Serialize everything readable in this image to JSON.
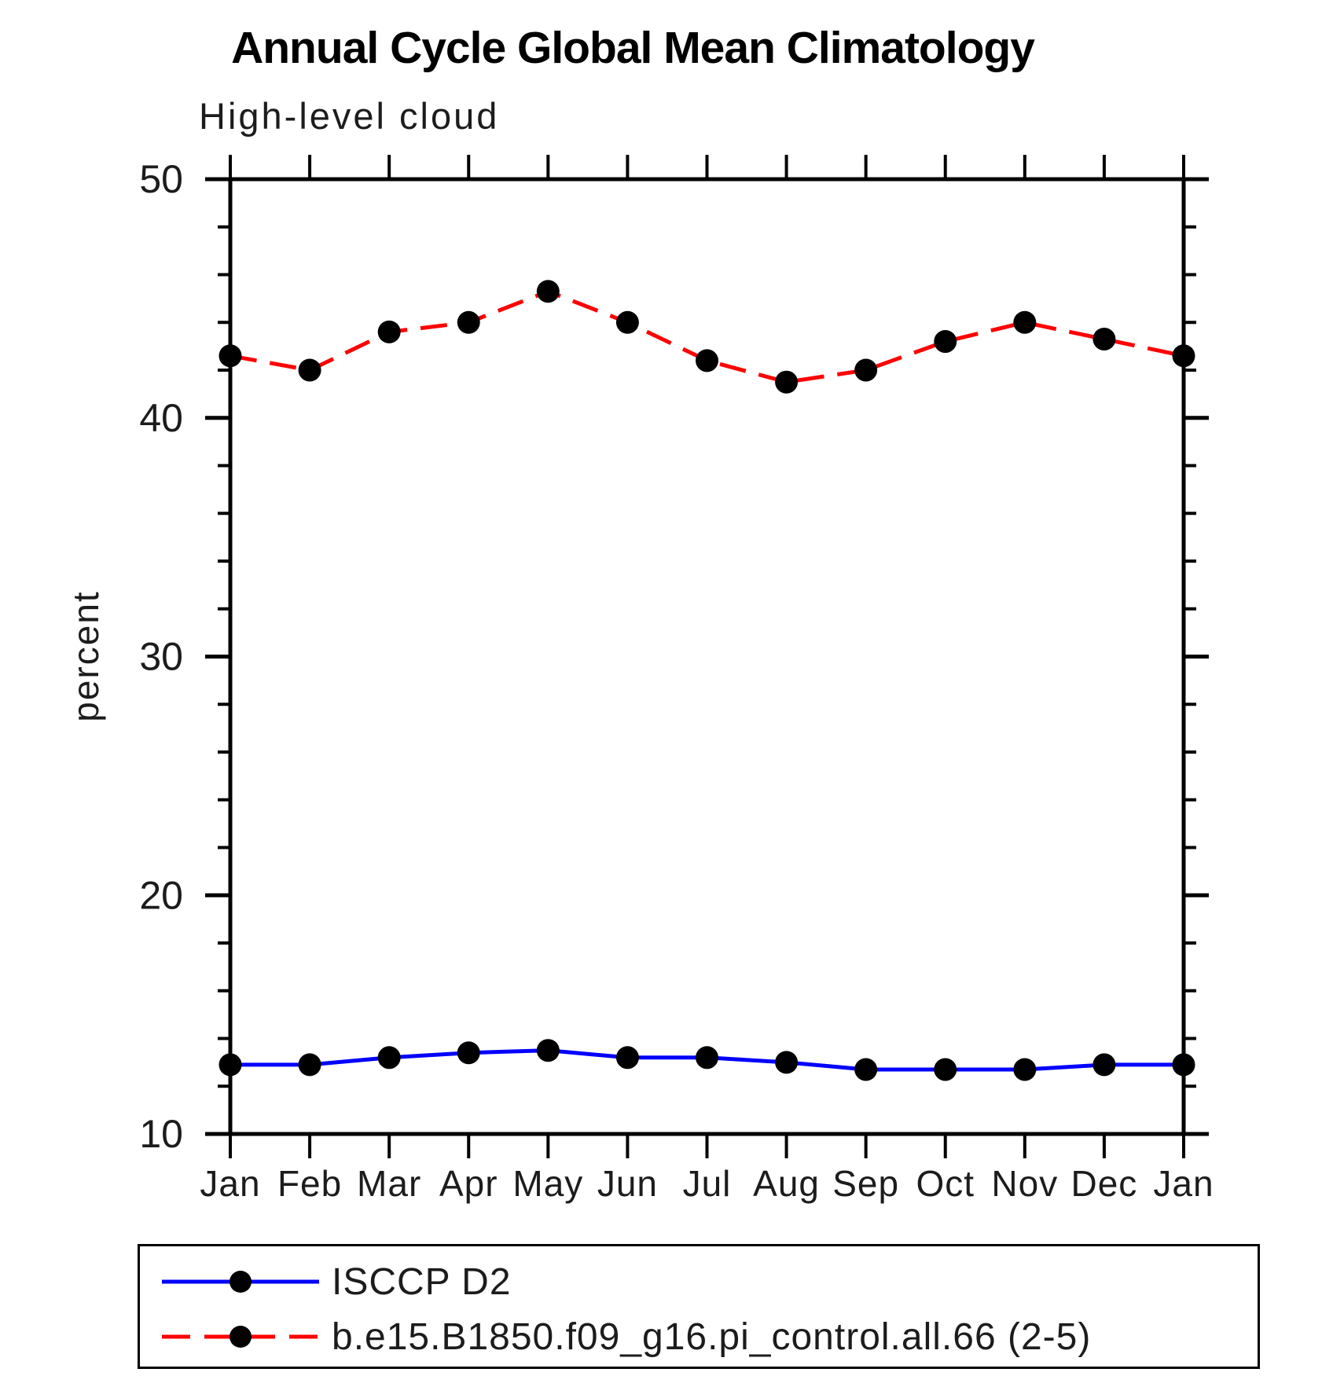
{
  "title": "Annual Cycle Global Mean Climatology",
  "subtitle": "High-level cloud",
  "ylabel": "percent",
  "legend": {
    "position": "bottom",
    "items": [
      {
        "label": "ISCCP D2",
        "color": "#0000ff",
        "style": "solid",
        "marker": "circle"
      },
      {
        "label": "b.e15.B1850.f09_g16.pi_control.all.66 (2-5)",
        "color": "#ff0000",
        "style": "dashed",
        "marker": "circle"
      }
    ]
  },
  "chart_data": {
    "type": "line",
    "title": "Annual Cycle Global Mean Climatology",
    "subtitle": "High-level cloud",
    "xlabel": "",
    "ylabel": "percent",
    "x_categories": [
      "Jan",
      "Feb",
      "Mar",
      "Apr",
      "May",
      "Jun",
      "Jul",
      "Aug",
      "Sep",
      "Oct",
      "Nov",
      "Dec",
      "Jan"
    ],
    "series": [
      {
        "name": "ISCCP D2",
        "color": "#0000ff",
        "line_style": "solid",
        "marker": "circle",
        "marker_color": "#000000",
        "values": [
          12.9,
          12.9,
          13.2,
          13.4,
          13.5,
          13.2,
          13.2,
          13.0,
          12.7,
          12.7,
          12.7,
          12.9,
          12.9
        ]
      },
      {
        "name": "b.e15.B1850.f09_g16.pi_control.all.66 (2-5)",
        "color": "#ff0000",
        "line_style": "dashed",
        "marker": "circle",
        "marker_color": "#000000",
        "values": [
          42.6,
          42.0,
          43.6,
          44.0,
          45.3,
          44.0,
          42.4,
          41.5,
          42.0,
          43.2,
          44.0,
          43.3,
          42.6
        ]
      }
    ],
    "ylim": [
      10,
      50
    ],
    "y_major_ticks": [
      10,
      20,
      30,
      40,
      50
    ],
    "y_minor_ticks": [
      12,
      14,
      16,
      18,
      22,
      24,
      26,
      28,
      32,
      34,
      36,
      38,
      42,
      44,
      46,
      48
    ],
    "tick_direction": "out",
    "grid": false,
    "legend_position": "bottom"
  }
}
